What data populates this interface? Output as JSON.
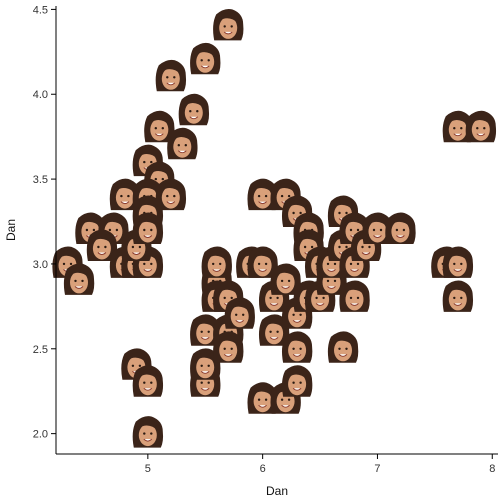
{
  "chart_data": {
    "type": "scatter",
    "title": "",
    "xlabel": "Dan",
    "ylabel": "Dan",
    "xlim": [
      4.2,
      8.05
    ],
    "ylim": [
      1.88,
      4.52
    ],
    "xticks": [
      "5",
      "6",
      "7",
      "8"
    ],
    "yticks": [
      "2.0",
      "2.5",
      "3.0",
      "3.5",
      "4.0",
      "4.5"
    ],
    "grid": false,
    "marker": "memoji-face-icon",
    "colors": {
      "hair": "#3b2419",
      "skin": "#d9a07a",
      "axis": "#000000"
    },
    "points": [
      [
        5.7,
        4.4
      ],
      [
        5.5,
        4.2
      ],
      [
        5.2,
        4.1
      ],
      [
        5.4,
        3.9
      ],
      [
        5.1,
        3.8
      ],
      [
        5.3,
        3.7
      ],
      [
        5.0,
        3.6
      ],
      [
        5.1,
        3.5
      ],
      [
        4.8,
        3.4
      ],
      [
        5.0,
        3.4
      ],
      [
        5.2,
        3.4
      ],
      [
        5.0,
        3.3
      ],
      [
        4.3,
        3.0
      ],
      [
        4.4,
        2.9
      ],
      [
        4.5,
        3.2
      ],
      [
        4.7,
        3.2
      ],
      [
        4.6,
        3.1
      ],
      [
        4.8,
        3.0
      ],
      [
        4.9,
        3.0
      ],
      [
        5.0,
        3.0
      ],
      [
        4.9,
        3.1
      ],
      [
        5.0,
        3.2
      ],
      [
        4.9,
        2.4
      ],
      [
        5.0,
        2.3
      ],
      [
        5.0,
        2.0
      ],
      [
        5.5,
        2.3
      ],
      [
        5.5,
        2.4
      ],
      [
        5.5,
        2.6
      ],
      [
        5.6,
        2.9
      ],
      [
        5.6,
        2.8
      ],
      [
        5.6,
        3.0
      ],
      [
        5.7,
        2.8
      ],
      [
        5.7,
        2.6
      ],
      [
        5.7,
        2.5
      ],
      [
        5.8,
        2.7
      ],
      [
        5.9,
        3.0
      ],
      [
        6.0,
        3.4
      ],
      [
        6.0,
        3.0
      ],
      [
        6.0,
        2.2
      ],
      [
        6.1,
        2.8
      ],
      [
        6.1,
        2.6
      ],
      [
        6.2,
        3.4
      ],
      [
        6.2,
        2.9
      ],
      [
        6.2,
        2.2
      ],
      [
        6.3,
        3.3
      ],
      [
        6.3,
        2.5
      ],
      [
        6.3,
        2.3
      ],
      [
        6.4,
        3.2
      ],
      [
        6.3,
        2.7
      ],
      [
        6.4,
        2.8
      ],
      [
        6.4,
        3.1
      ],
      [
        6.5,
        3.0
      ],
      [
        6.5,
        2.8
      ],
      [
        6.6,
        2.9
      ],
      [
        6.6,
        3.0
      ],
      [
        6.7,
        3.3
      ],
      [
        6.7,
        3.1
      ],
      [
        6.7,
        2.5
      ],
      [
        6.8,
        2.8
      ],
      [
        6.8,
        3.0
      ],
      [
        6.8,
        3.2
      ],
      [
        6.9,
        3.1
      ],
      [
        7.0,
        3.2
      ],
      [
        7.2,
        3.2
      ],
      [
        7.6,
        3.0
      ],
      [
        7.7,
        2.8
      ],
      [
        7.7,
        3.0
      ],
      [
        7.7,
        3.8
      ],
      [
        7.9,
        3.8
      ]
    ]
  }
}
